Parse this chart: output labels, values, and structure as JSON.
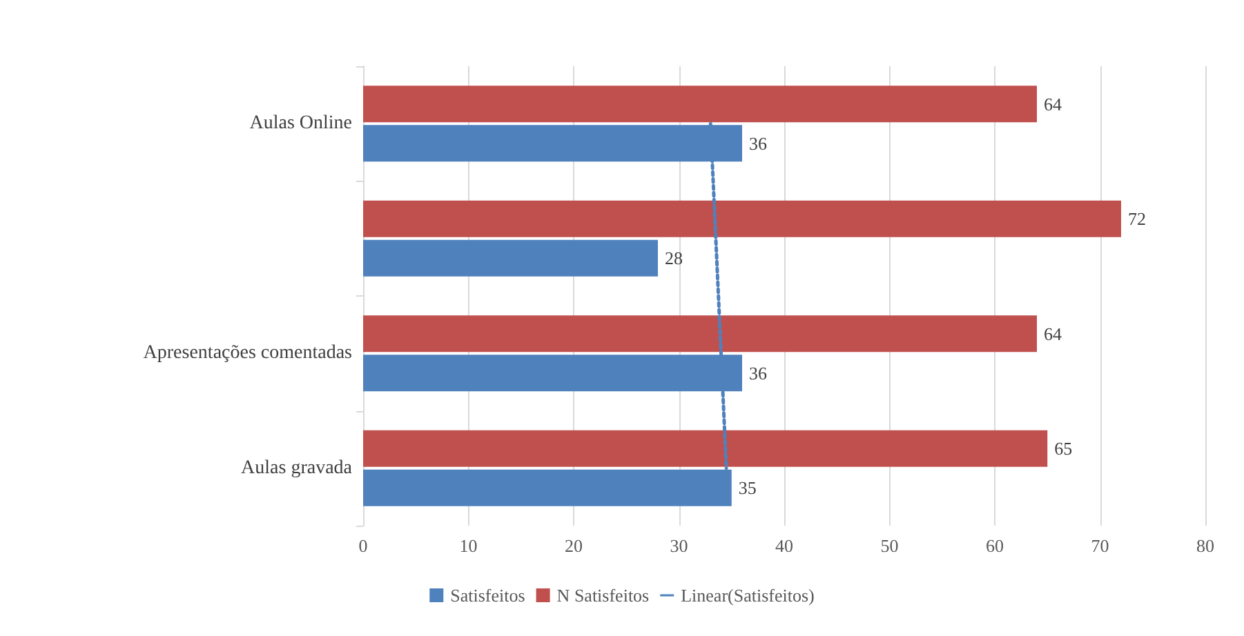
{
  "chart_data": {
    "type": "bar",
    "orientation": "horizontal",
    "categories": [
      "Aulas Online",
      null,
      "Apresentações comentadas",
      "Aulas gravada"
    ],
    "series": [
      {
        "name": "Satisfeitos",
        "color": "#4f81bd",
        "values": [
          36,
          28,
          36,
          35
        ],
        "value_labels": [
          "36",
          "28",
          "36",
          "35"
        ]
      },
      {
        "name": "N Satisfeitos",
        "color": "#c0504d",
        "values": [
          64,
          72,
          64,
          65
        ],
        "value_labels": [
          "64",
          "72",
          "64",
          "65"
        ]
      },
      {
        "name": "Linear(Satisfeitos)",
        "type": "line",
        "color": "#4f81bd",
        "line_style": "dotted",
        "marker": "none",
        "values": [
          33,
          33.5,
          34,
          34.5
        ]
      }
    ],
    "xlim": [
      0,
      80
    ],
    "xticks": [
      0,
      10,
      20,
      30,
      40,
      50,
      60,
      70,
      80
    ],
    "grid": "x",
    "legend": "bottom"
  }
}
